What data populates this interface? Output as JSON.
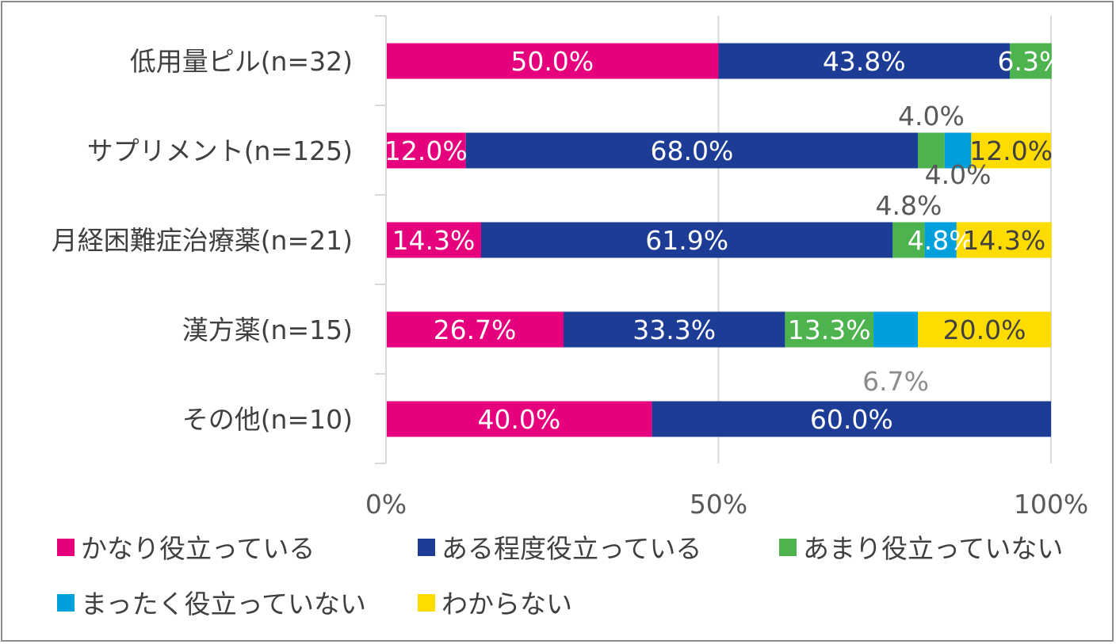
{
  "chart_data": {
    "type": "bar",
    "orientation": "horizontal",
    "stacked": "percent",
    "categories": [
      "低用量ピル(n=32)",
      "サプリメント(n=125)",
      "月経困難症治療薬(n=21)",
      "漢方薬(n=15)",
      "その他(n=10)"
    ],
    "series": [
      {
        "name": "かなり役立っている",
        "color": "#e6007e",
        "values": [
          50.0,
          12.0,
          14.3,
          26.7,
          40.0
        ],
        "labels": [
          "50.0%",
          "12.0%",
          "14.3%",
          "26.7%",
          "40.0%"
        ]
      },
      {
        "name": "ある程度役立っている",
        "color": "#1d3c96",
        "values": [
          43.8,
          68.0,
          61.9,
          33.3,
          60.0
        ],
        "labels": [
          "43.8%",
          "68.0%",
          "61.9%",
          "33.3%",
          "60.0%"
        ]
      },
      {
        "name": "あまり役立っていない",
        "color": "#4db34e",
        "values": [
          6.3,
          4.0,
          4.8,
          13.3,
          0
        ],
        "labels": [
          "6.3%",
          "4.0%",
          "4.8%",
          "13.3%",
          ""
        ]
      },
      {
        "name": "まったく役立っていない",
        "color": "#00a0dd",
        "values": [
          0,
          4.0,
          4.8,
          6.7,
          0
        ],
        "labels": [
          "",
          "4.0%",
          "4.8%",
          "6.7%",
          ""
        ]
      },
      {
        "name": "わからない",
        "color": "#ffdc00",
        "values": [
          0,
          12.0,
          14.3,
          20.0,
          0
        ],
        "labels": [
          "",
          "12.0%",
          "14.3%",
          "20.0%",
          ""
        ]
      }
    ],
    "xticks": [
      "0%",
      "50%",
      "100%"
    ],
    "xlim": [
      0,
      100
    ],
    "grid": true,
    "legend": "bottom"
  }
}
